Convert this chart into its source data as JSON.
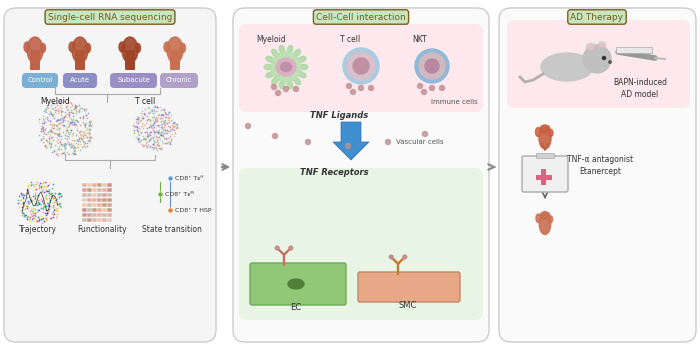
{
  "fig_width": 7.0,
  "fig_height": 3.5,
  "bg_color": "#ffffff",
  "panel1": {
    "title": "Single-cell RNA sequencing",
    "title_color": "#7a5c1e",
    "title_bg": "#c8e6c0",
    "labels": [
      "Control",
      "Acute",
      "Subacute",
      "Chronic"
    ],
    "label_colors": [
      "#7bafd4",
      "#8b8ec4",
      "#9b8ec4",
      "#b0a0c8"
    ],
    "cd8_colors": [
      "#5b9bd5",
      "#70ad47",
      "#ed7d31"
    ]
  },
  "panel2": {
    "title": "Cell-Cell interaction",
    "title_color": "#7a5c1e",
    "title_bg": "#c8e6c0",
    "immune_labels": [
      "Myeloid",
      "T cell",
      "NKT"
    ],
    "immune_label": "Immune cells",
    "vascular_label": "Vascular cells",
    "tnf_ligands": "TNF Ligands",
    "tnf_receptors": "TNF Receptors",
    "ec_label": "EC",
    "smc_label": "SMC"
  },
  "panel3": {
    "title": "AD Therapy",
    "title_color": "#7a5c1e",
    "title_bg": "#c8e6c0",
    "bapn_label": "BAPN-induced\nAD model",
    "drug_label": "TNF-α antagonist\nEtanercept",
    "arrow_color": "#666666"
  },
  "arrow_color": "#888888"
}
